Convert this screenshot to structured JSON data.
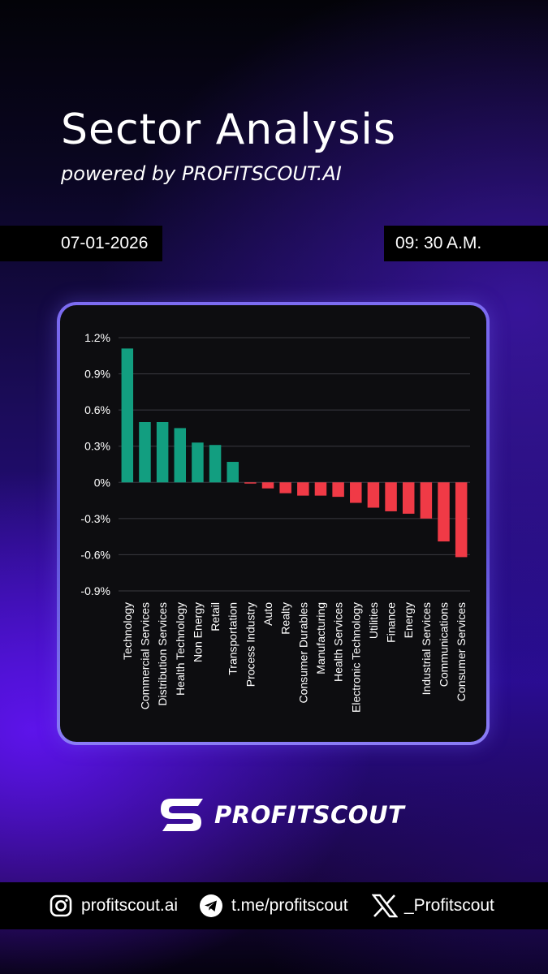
{
  "header": {
    "title": "Sector Analysis",
    "subtitle": "powered by PROFITSCOUT.AI",
    "date": "07-01-2026",
    "time": "09: 30 A.M."
  },
  "colors": {
    "positive": "#129e80",
    "negative": "#f03a46",
    "grid": "#3a3a40",
    "frame": "#7d6cf2"
  },
  "chart_data": {
    "type": "bar",
    "title": "",
    "xlabel": "",
    "ylabel": "",
    "ylim": [
      -0.9,
      1.2
    ],
    "yticks": [
      1.2,
      0.9,
      0.6,
      0.3,
      0,
      -0.3,
      -0.6,
      -0.9
    ],
    "ytick_labels": [
      "1.2%",
      "0.9%",
      "0.6%",
      "0.3%",
      "0%",
      "-0.3%",
      "-0.6%",
      "-0.9%"
    ],
    "grid": true,
    "legend": "none",
    "categories": [
      "Technology",
      "Commercial Services",
      "Distribution Services",
      "Health Technology",
      "Non Energy",
      "Retail",
      "Transportation",
      "Process Industry",
      "Auto",
      "Realty",
      "Consumer Durables",
      "Manufacturing",
      "Health Services",
      "Electronic Technology",
      "Utilities",
      "Finance",
      "Energy",
      "Industrial Services",
      "Communications",
      "Consumer Services"
    ],
    "values": [
      1.11,
      0.5,
      0.5,
      0.45,
      0.33,
      0.31,
      0.17,
      -0.01,
      -0.05,
      -0.09,
      -0.11,
      -0.11,
      -0.12,
      -0.17,
      -0.21,
      -0.24,
      -0.26,
      -0.3,
      -0.49,
      -0.62
    ]
  },
  "brand": {
    "name": "PROFITSCOUT",
    "logo_icon": "profitscout-s-logo-icon"
  },
  "footer": {
    "instagram": {
      "icon": "instagram-icon",
      "text": "profitscout.ai"
    },
    "telegram": {
      "icon": "telegram-icon",
      "text": "t.me/profitscout"
    },
    "x": {
      "icon": "x-icon",
      "text": "_Profitscout"
    }
  }
}
